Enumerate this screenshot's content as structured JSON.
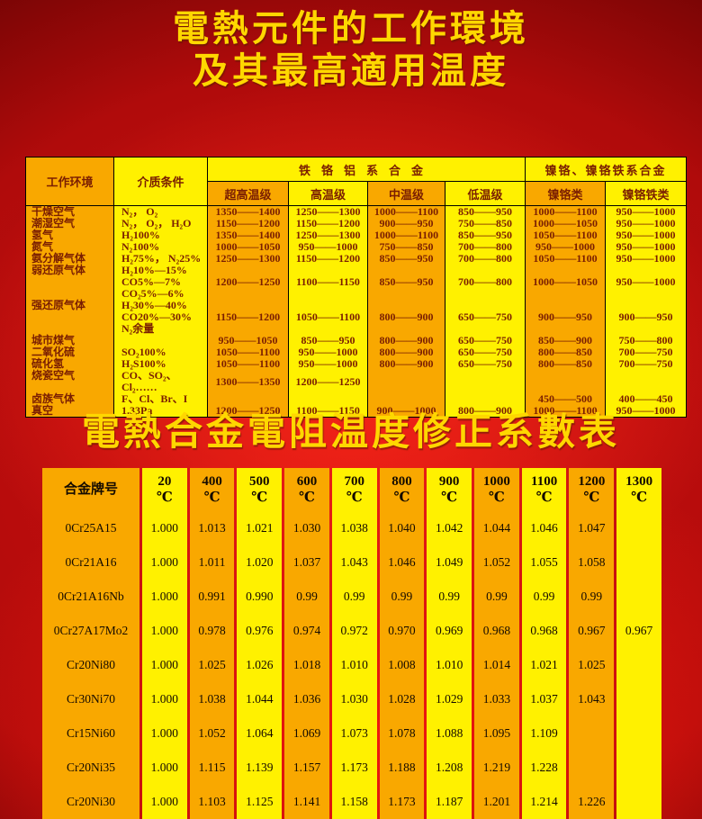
{
  "page": {
    "title_line1": "電熱元件的工作環境",
    "title_line2": "及其最高適用温度",
    "subtitle": "電熱合金電阻温度修正系數表"
  },
  "colors": {
    "column_orange": "#f9a800",
    "column_yellow": "#fff100",
    "background_red": "#cc1010",
    "background_dark_red": "#380101",
    "title_yellow": "#ffd700",
    "table1_text": "#7a1e02",
    "table2_text": "#140a00"
  },
  "table1": {
    "header": {
      "env": "工作环境",
      "medium": "介质条件",
      "fecral": "铁铬铝系合金",
      "nicr": "镍铬、镍铬铁系合金",
      "sub": [
        "超高温级",
        "高温级",
        "中温级",
        "低温级",
        "镍铬类",
        "镍铬铁类"
      ]
    },
    "rows": [
      [
        "干燥空气",
        "N₂， O₂",
        "1350——1400",
        "1250——1300",
        "1000——1100",
        "850——950",
        "1000——1100",
        "950——1000"
      ],
      [
        "潮湿空气",
        "N₂， O₂， H₂O",
        "1150——1200",
        "1150——1200",
        "900——950",
        "750——850",
        "1000——1050",
        "950——1000"
      ],
      [
        "氢气",
        "H₂100%",
        "1350——1400",
        "1250——1300",
        "1000——1100",
        "850——950",
        "1050——1100",
        "950——1000"
      ],
      [
        "氮气",
        "N₂100%",
        "1000——1050",
        "950——1000",
        "750——850",
        "700——800",
        "950——1000",
        "950——1000"
      ],
      [
        "氨分解气体",
        "H₂75%， N₂25%",
        "1250——1300",
        "1150——1200",
        "850——950",
        "700——800",
        "1050——1100",
        "950——1000"
      ],
      [
        "弱还原气体",
        "H₂10%—15%\nCO5%—7%\nCO₂5%—6%",
        "1200——1250",
        "1100——1150",
        "850——950",
        "700——800",
        "1000——1050",
        "950——1000"
      ],
      [
        "强还原气体",
        "H₂30%—40%\nCO20%—30%\nN₂余量",
        "1150——1200",
        "1050——1100",
        "800——900",
        "650——750",
        "900——950",
        "900——950"
      ],
      [
        "城市煤气",
        "",
        "950——1050",
        "850——950",
        "800——900",
        "650——750",
        "850——900",
        "750——800"
      ],
      [
        "二氧化硫",
        "SO₂100%",
        "1050——1100",
        "950——1000",
        "800——900",
        "650——750",
        "800——850",
        "700——750"
      ],
      [
        "硫化氢",
        "H₂S100%",
        "1050——1100",
        "950——1000",
        "800——900",
        "650——750",
        "800——850",
        "700——750"
      ],
      [
        "烧瓷空气",
        "CO、SO₂、Cl₂……",
        "1300——1350",
        "1200——1250",
        "",
        "",
        "",
        ""
      ],
      [
        "卤族气体",
        "F、Cl、Br、I",
        "",
        "",
        "",
        "",
        "450——500",
        "400——450"
      ],
      [
        "真空",
        "1.33Pa",
        "1200——1250",
        "1100——1150",
        "900——1000",
        "800——900",
        "1000——1100",
        "950——1000"
      ]
    ]
  },
  "table2": {
    "columns": [
      "合金牌号",
      "20\n℃",
      "400\n℃",
      "500\n℃",
      "600\n℃",
      "700\n℃",
      "800\n℃",
      "900\n℃",
      "1000\n℃",
      "1100\n℃",
      "1200\n℃",
      "1300\n℃"
    ],
    "rows": [
      [
        "0Cr25A15",
        "1.000",
        "1.013",
        "1.021",
        "1.030",
        "1.038",
        "1.040",
        "1.042",
        "1.044",
        "1.046",
        "1.047",
        ""
      ],
      [
        "0Cr21A16",
        "1.000",
        "1.011",
        "1.020",
        "1.037",
        "1.043",
        "1.046",
        "1.049",
        "1.052",
        "1.055",
        "1.058",
        ""
      ],
      [
        "0Cr21A16Nb",
        "1.000",
        "0.991",
        "0.990",
        "0.99",
        "0.99",
        "0.99",
        "0.99",
        "0.99",
        "0.99",
        "0.99",
        ""
      ],
      [
        "0Cr27A17Mo2",
        "1.000",
        "0.978",
        "0.976",
        "0.974",
        "0.972",
        "0.970",
        "0.969",
        "0.968",
        "0.968",
        "0.967",
        "0.967"
      ],
      [
        "Cr20Ni80",
        "1.000",
        "1.025",
        "1.026",
        "1.018",
        "1.010",
        "1.008",
        "1.010",
        "1.014",
        "1.021",
        "1.025",
        ""
      ],
      [
        "Cr30Ni70",
        "1.000",
        "1.038",
        "1.044",
        "1.036",
        "1.030",
        "1.028",
        "1.029",
        "1.033",
        "1.037",
        "1.043",
        ""
      ],
      [
        "Cr15Ni60",
        "1.000",
        "1.052",
        "1.064",
        "1.069",
        "1.073",
        "1.078",
        "1.088",
        "1.095",
        "1.109",
        "",
        ""
      ],
      [
        "Cr20Ni35",
        "1.000",
        "1.115",
        "1.139",
        "1.157",
        "1.173",
        "1.188",
        "1.208",
        "1.219",
        "1.228",
        "",
        ""
      ],
      [
        "Cr20Ni30",
        "1.000",
        "1.103",
        "1.125",
        "1.141",
        "1.158",
        "1.173",
        "1.187",
        "1.201",
        "1.214",
        "1.226",
        ""
      ]
    ]
  }
}
